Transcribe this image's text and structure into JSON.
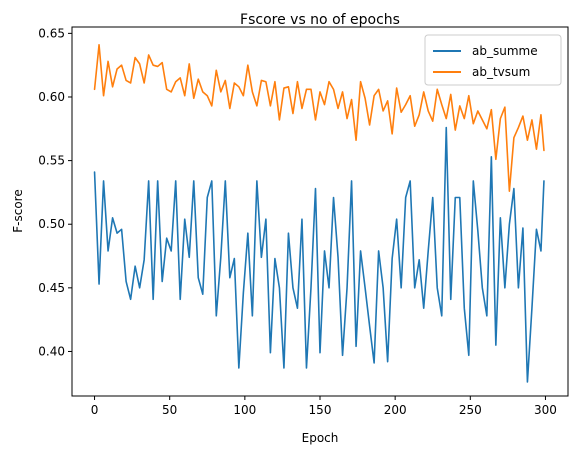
{
  "chart_data": {
    "type": "line",
    "title": "Fscore vs no of epochs",
    "xlabel": "Epoch",
    "ylabel": "F-score",
    "xlim": [
      -15,
      315
    ],
    "ylim": [
      0.365,
      0.655
    ],
    "xticks": [
      0,
      50,
      100,
      150,
      200,
      250,
      300
    ],
    "yticks": [
      0.4,
      0.45,
      0.5,
      0.55,
      0.6,
      0.65
    ],
    "ytick_labels": [
      "0.40",
      "0.45",
      "0.50",
      "0.55",
      "0.60",
      "0.65"
    ],
    "grid": false,
    "legend_position": "top-right",
    "series": [
      {
        "name": "ab_summe",
        "color": "#1f77b4",
        "x": [
          0,
          3,
          6,
          9,
          12,
          15,
          18,
          21,
          24,
          27,
          30,
          33,
          36,
          39,
          42,
          45,
          48,
          51,
          54,
          57,
          60,
          63,
          66,
          69,
          72,
          75,
          78,
          81,
          84,
          87,
          90,
          93,
          96,
          99,
          102,
          105,
          108,
          111,
          114,
          117,
          120,
          123,
          126,
          129,
          132,
          135,
          138,
          141,
          144,
          147,
          150,
          153,
          156,
          159,
          162,
          165,
          168,
          171,
          174,
          177,
          180,
          183,
          186,
          189,
          192,
          195,
          198,
          201,
          204,
          207,
          210,
          213,
          216,
          219,
          222,
          225,
          228,
          231,
          234,
          237,
          240,
          243,
          246,
          249,
          252,
          255,
          258,
          261,
          264,
          267,
          270,
          273,
          276,
          279,
          282,
          285,
          288,
          291,
          294,
          297,
          299
        ],
        "values": [
          0.541,
          0.453,
          0.534,
          0.479,
          0.505,
          0.493,
          0.496,
          0.455,
          0.441,
          0.467,
          0.45,
          0.472,
          0.534,
          0.441,
          0.534,
          0.455,
          0.489,
          0.479,
          0.534,
          0.441,
          0.504,
          0.474,
          0.534,
          0.458,
          0.445,
          0.521,
          0.534,
          0.428,
          0.474,
          0.534,
          0.458,
          0.473,
          0.387,
          0.446,
          0.493,
          0.428,
          0.534,
          0.474,
          0.504,
          0.399,
          0.473,
          0.45,
          0.387,
          0.493,
          0.45,
          0.434,
          0.504,
          0.387,
          0.45,
          0.528,
          0.399,
          0.479,
          0.45,
          0.521,
          0.474,
          0.397,
          0.45,
          0.534,
          0.404,
          0.479,
          0.45,
          0.42,
          0.391,
          0.479,
          0.45,
          0.392,
          0.473,
          0.504,
          0.45,
          0.521,
          0.534,
          0.45,
          0.472,
          0.434,
          0.479,
          0.521,
          0.45,
          0.428,
          0.576,
          0.441,
          0.521,
          0.521,
          0.434,
          0.397,
          0.534,
          0.495,
          0.45,
          0.428,
          0.553,
          0.405,
          0.505,
          0.45,
          0.5,
          0.528,
          0.45,
          0.497,
          0.376,
          0.434,
          0.496,
          0.479,
          0.534
        ]
      },
      {
        "name": "ab_tvsum",
        "color": "#ff7f0e",
        "x": [
          0,
          3,
          6,
          9,
          12,
          15,
          18,
          21,
          24,
          27,
          30,
          33,
          36,
          39,
          42,
          45,
          48,
          51,
          54,
          57,
          60,
          63,
          66,
          69,
          72,
          75,
          78,
          81,
          84,
          87,
          90,
          93,
          96,
          99,
          102,
          105,
          108,
          111,
          114,
          117,
          120,
          123,
          126,
          129,
          132,
          135,
          138,
          141,
          144,
          147,
          150,
          153,
          156,
          159,
          162,
          165,
          168,
          171,
          174,
          177,
          180,
          183,
          186,
          189,
          192,
          195,
          198,
          201,
          204,
          207,
          210,
          213,
          216,
          219,
          222,
          225,
          228,
          231,
          234,
          237,
          240,
          243,
          246,
          249,
          252,
          255,
          258,
          261,
          264,
          267,
          270,
          273,
          276,
          279,
          282,
          285,
          288,
          291,
          294,
          297,
          299
        ],
        "values": [
          0.606,
          0.641,
          0.601,
          0.628,
          0.608,
          0.622,
          0.625,
          0.613,
          0.611,
          0.631,
          0.626,
          0.611,
          0.633,
          0.625,
          0.624,
          0.627,
          0.606,
          0.604,
          0.612,
          0.615,
          0.601,
          0.626,
          0.599,
          0.614,
          0.604,
          0.601,
          0.593,
          0.621,
          0.604,
          0.613,
          0.591,
          0.611,
          0.608,
          0.601,
          0.625,
          0.604,
          0.593,
          0.613,
          0.612,
          0.593,
          0.612,
          0.582,
          0.607,
          0.608,
          0.587,
          0.612,
          0.591,
          0.606,
          0.606,
          0.582,
          0.604,
          0.594,
          0.612,
          0.606,
          0.591,
          0.604,
          0.583,
          0.598,
          0.566,
          0.612,
          0.599,
          0.578,
          0.601,
          0.606,
          0.589,
          0.597,
          0.571,
          0.607,
          0.588,
          0.594,
          0.601,
          0.577,
          0.586,
          0.604,
          0.589,
          0.581,
          0.606,
          0.594,
          0.583,
          0.602,
          0.574,
          0.593,
          0.583,
          0.601,
          0.579,
          0.589,
          0.582,
          0.575,
          0.59,
          0.551,
          0.583,
          0.592,
          0.526,
          0.568,
          0.576,
          0.585,
          0.566,
          0.582,
          0.559,
          0.586,
          0.558
        ]
      }
    ]
  }
}
